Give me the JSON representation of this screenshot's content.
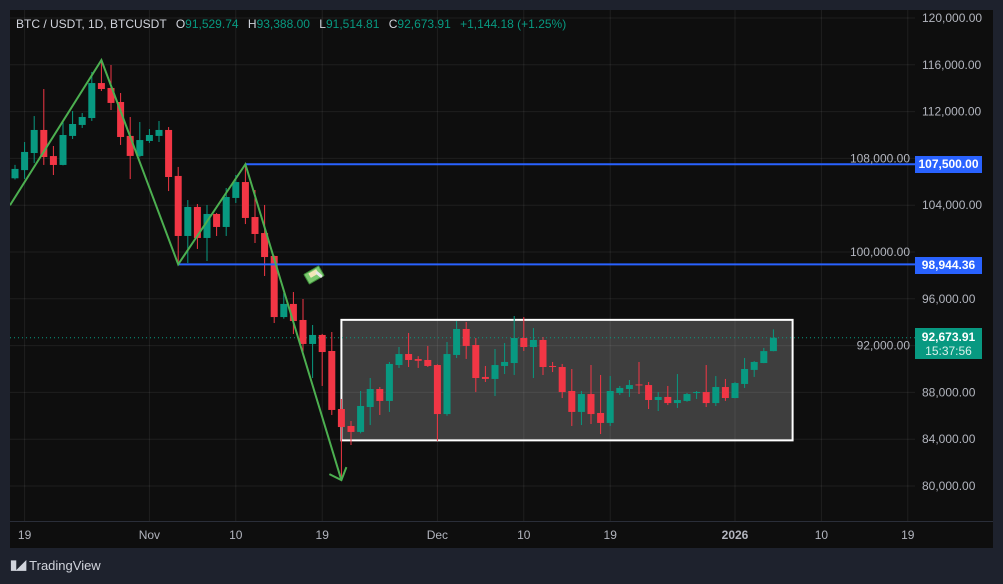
{
  "header": {
    "symbol": "BTC / USDT, 1D, BTCUSDT",
    "open_label": "O",
    "open": "91,529.74",
    "high_label": "H",
    "high": "93,388.00",
    "low_label": "L",
    "low": "91,514.81",
    "close_label": "C",
    "close": "92,673.91",
    "change": "+1,144.18 (+1.25%)"
  },
  "price_tags": {
    "resistance": "107,500.00",
    "support": "98,944.36",
    "last_price": "92,673.91",
    "countdown": "15:37:56"
  },
  "branding": {
    "logo_text": "TradingView"
  },
  "colors": {
    "up": "#089981",
    "down": "#f23645",
    "hline": "#2962ff",
    "zigzag": "#4caf50",
    "box_border": "#ffffff",
    "box_fill": "#3e3e3e",
    "last_price": "#089981"
  },
  "icons": {
    "sticker": "money-with-wings-icon",
    "logo": "tradingview-logo-icon"
  },
  "chart_data": {
    "type": "candlestick",
    "ylim": [
      78000,
      121000
    ],
    "grid": true,
    "y_ticks": [
      "80,000.00",
      "84,000.00",
      "88,000.00",
      "92,000.00",
      "96,000.00",
      "100,000.00",
      "104,000.00",
      "108,000.00",
      "112,000.00",
      "116,000.00",
      "120,000.00"
    ],
    "y_tick_values": [
      80000,
      84000,
      88000,
      92000,
      96000,
      100000,
      104000,
      108000,
      112000,
      116000,
      120000
    ],
    "x_ticks": [
      {
        "label": "19",
        "date": "2025-10-19"
      },
      {
        "label": "Nov",
        "date": "2025-11-01"
      },
      {
        "label": "10",
        "date": "2025-11-10"
      },
      {
        "label": "19",
        "date": "2025-11-19"
      },
      {
        "label": "Dec",
        "date": "2025-12-01"
      },
      {
        "label": "10",
        "date": "2025-12-10"
      },
      {
        "label": "19",
        "date": "2025-12-19"
      },
      {
        "label": "2026",
        "date": "2026-01-01"
      },
      {
        "label": "10",
        "date": "2026-01-10"
      },
      {
        "label": "19",
        "date": "2026-01-19"
      }
    ],
    "columns": [
      "date",
      "open",
      "high",
      "low",
      "close"
    ],
    "candles": [
      [
        "2025-10-18",
        106300,
        107450,
        106200,
        107100
      ],
      [
        "2025-10-19",
        107000,
        109400,
        106240,
        108550
      ],
      [
        "2025-10-20",
        108460,
        111620,
        107600,
        110430
      ],
      [
        "2025-10-21",
        110430,
        113930,
        107440,
        108120
      ],
      [
        "2025-10-22",
        108200,
        109060,
        106580,
        107440
      ],
      [
        "2025-10-23",
        107440,
        111280,
        107400,
        110000
      ],
      [
        "2025-10-24",
        109920,
        112050,
        109660,
        110940
      ],
      [
        "2025-10-25",
        110860,
        111880,
        110600,
        111540
      ],
      [
        "2025-10-26",
        111450,
        115390,
        111200,
        114440
      ],
      [
        "2025-10-27",
        114440,
        116410,
        113760,
        113930
      ],
      [
        "2025-10-28",
        114020,
        115980,
        112140,
        112740
      ],
      [
        "2025-10-29",
        112820,
        113590,
        109150,
        109830
      ],
      [
        "2025-10-30",
        109920,
        111540,
        106240,
        108210
      ],
      [
        "2025-10-31",
        108210,
        111110,
        108100,
        109570
      ],
      [
        "2025-11-01",
        109490,
        110510,
        109320,
        110000
      ],
      [
        "2025-11-02",
        109920,
        111200,
        109400,
        110430
      ],
      [
        "2025-11-03",
        110430,
        110680,
        105210,
        106410
      ],
      [
        "2025-11-04",
        106500,
        107270,
        98944,
        101370
      ],
      [
        "2025-11-05",
        101370,
        104440,
        99060,
        103850
      ],
      [
        "2025-11-06",
        103850,
        104100,
        100260,
        101200
      ],
      [
        "2025-11-07",
        101200,
        104020,
        99230,
        103250
      ],
      [
        "2025-11-08",
        103250,
        103330,
        101370,
        102140
      ],
      [
        "2025-11-09",
        102140,
        105470,
        101370,
        104700
      ],
      [
        "2025-11-10",
        104620,
        106580,
        104190,
        105980
      ],
      [
        "2025-11-11",
        105980,
        107500,
        102390,
        102910
      ],
      [
        "2025-11-12",
        102990,
        105300,
        100770,
        101540
      ],
      [
        "2025-11-13",
        101620,
        104020,
        97950,
        99570
      ],
      [
        "2025-11-14",
        99660,
        99700,
        93930,
        94440
      ],
      [
        "2025-11-15",
        94440,
        96500,
        94300,
        95560
      ],
      [
        "2025-11-16",
        95560,
        96580,
        92990,
        94100
      ],
      [
        "2025-11-17",
        94190,
        95980,
        91200,
        92140
      ],
      [
        "2025-11-18",
        92140,
        93760,
        89230,
        92910
      ],
      [
        "2025-11-19",
        92910,
        93000,
        88550,
        91450
      ],
      [
        "2025-11-20",
        91540,
        93160,
        86070,
        86500
      ],
      [
        "2025-11-21",
        86580,
        87440,
        80510,
        85040
      ],
      [
        "2025-11-22",
        85130,
        85560,
        83500,
        84620
      ],
      [
        "2025-11-23",
        84620,
        88120,
        84500,
        86840
      ],
      [
        "2025-11-24",
        86750,
        89230,
        85210,
        88290
      ],
      [
        "2025-11-25",
        88290,
        88460,
        86070,
        87270
      ],
      [
        "2025-11-26",
        87270,
        90600,
        86330,
        90430
      ],
      [
        "2025-11-27",
        90340,
        91880,
        90090,
        91280
      ],
      [
        "2025-11-28",
        91280,
        93080,
        90170,
        90770
      ],
      [
        "2025-11-29",
        90850,
        91100,
        90090,
        90700
      ],
      [
        "2025-11-30",
        90770,
        91970,
        90170,
        90260
      ],
      [
        "2025-12-01",
        90340,
        90400,
        83850,
        86150
      ],
      [
        "2025-12-02",
        86150,
        92310,
        86000,
        91280
      ],
      [
        "2025-12-03",
        91200,
        94100,
        90940,
        93420
      ],
      [
        "2025-12-04",
        93420,
        94020,
        90860,
        91970
      ],
      [
        "2025-12-05",
        92050,
        92650,
        88030,
        89230
      ],
      [
        "2025-12-06",
        89320,
        90260,
        88890,
        89150
      ],
      [
        "2025-12-07",
        89150,
        91710,
        87690,
        90340
      ],
      [
        "2025-12-08",
        90260,
        92220,
        89570,
        90600
      ],
      [
        "2025-12-09",
        90510,
        94530,
        89490,
        92650
      ],
      [
        "2025-12-10",
        92650,
        94440,
        91540,
        91880
      ],
      [
        "2025-12-11",
        91880,
        93500,
        89230,
        92480
      ],
      [
        "2025-12-12",
        92480,
        92740,
        89490,
        90170
      ],
      [
        "2025-12-13",
        90260,
        90600,
        89740,
        90170
      ],
      [
        "2025-12-14",
        90170,
        90430,
        87520,
        88030
      ],
      [
        "2025-12-15",
        88120,
        90000,
        85130,
        86330
      ],
      [
        "2025-12-16",
        86330,
        88120,
        85210,
        87860
      ],
      [
        "2025-12-17",
        87860,
        90340,
        85300,
        86150
      ],
      [
        "2025-12-18",
        86240,
        89490,
        84440,
        85390
      ],
      [
        "2025-12-19",
        85390,
        89400,
        85130,
        88120
      ],
      [
        "2025-12-20",
        87950,
        88550,
        87780,
        88380
      ],
      [
        "2025-12-21",
        88290,
        89060,
        87610,
        88630
      ],
      [
        "2025-12-22",
        88680,
        90600,
        87860,
        88630
      ],
      [
        "2025-12-23",
        88630,
        88890,
        86580,
        87350
      ],
      [
        "2025-12-24",
        87350,
        88030,
        86410,
        87610
      ],
      [
        "2025-12-25",
        87610,
        88550,
        86920,
        87090
      ],
      [
        "2025-12-26",
        87090,
        89570,
        86670,
        87350
      ],
      [
        "2025-12-27",
        87270,
        87950,
        87200,
        87860
      ],
      [
        "2025-12-28",
        87950,
        88120,
        87440,
        88030
      ],
      [
        "2025-12-29",
        88030,
        90340,
        86750,
        87090
      ],
      [
        "2025-12-30",
        87090,
        89400,
        86840,
        88460
      ],
      [
        "2025-12-31",
        88460,
        89150,
        87270,
        87520
      ],
      [
        "2026-01-01",
        87520,
        88890,
        87500,
        88800
      ],
      [
        "2026-01-02",
        88720,
        90940,
        88380,
        90000
      ],
      [
        "2026-01-03",
        89920,
        90680,
        89320,
        90600
      ],
      [
        "2026-01-04",
        90510,
        91800,
        90500,
        91530
      ],
      [
        "2026-01-05",
        91529.74,
        93388.0,
        91514.81,
        92673.91
      ]
    ],
    "drawings": {
      "zigzag": [
        [
          "2025-10-17",
          104000
        ],
        [
          "2025-10-27",
          116400
        ],
        [
          "2025-11-04",
          98944.36
        ],
        [
          "2025-11-11",
          107500
        ],
        [
          "2025-11-21",
          80500
        ]
      ],
      "horizontal_rays": [
        {
          "from": "2025-11-11",
          "price": 107500
        },
        {
          "from": "2025-11-04",
          "price": 98944.36
        }
      ],
      "range_box": {
        "from": "2025-11-21",
        "to": "2026-01-07",
        "top": 94200,
        "bottom": 83900
      },
      "last_price_line": 92673.91
    }
  }
}
